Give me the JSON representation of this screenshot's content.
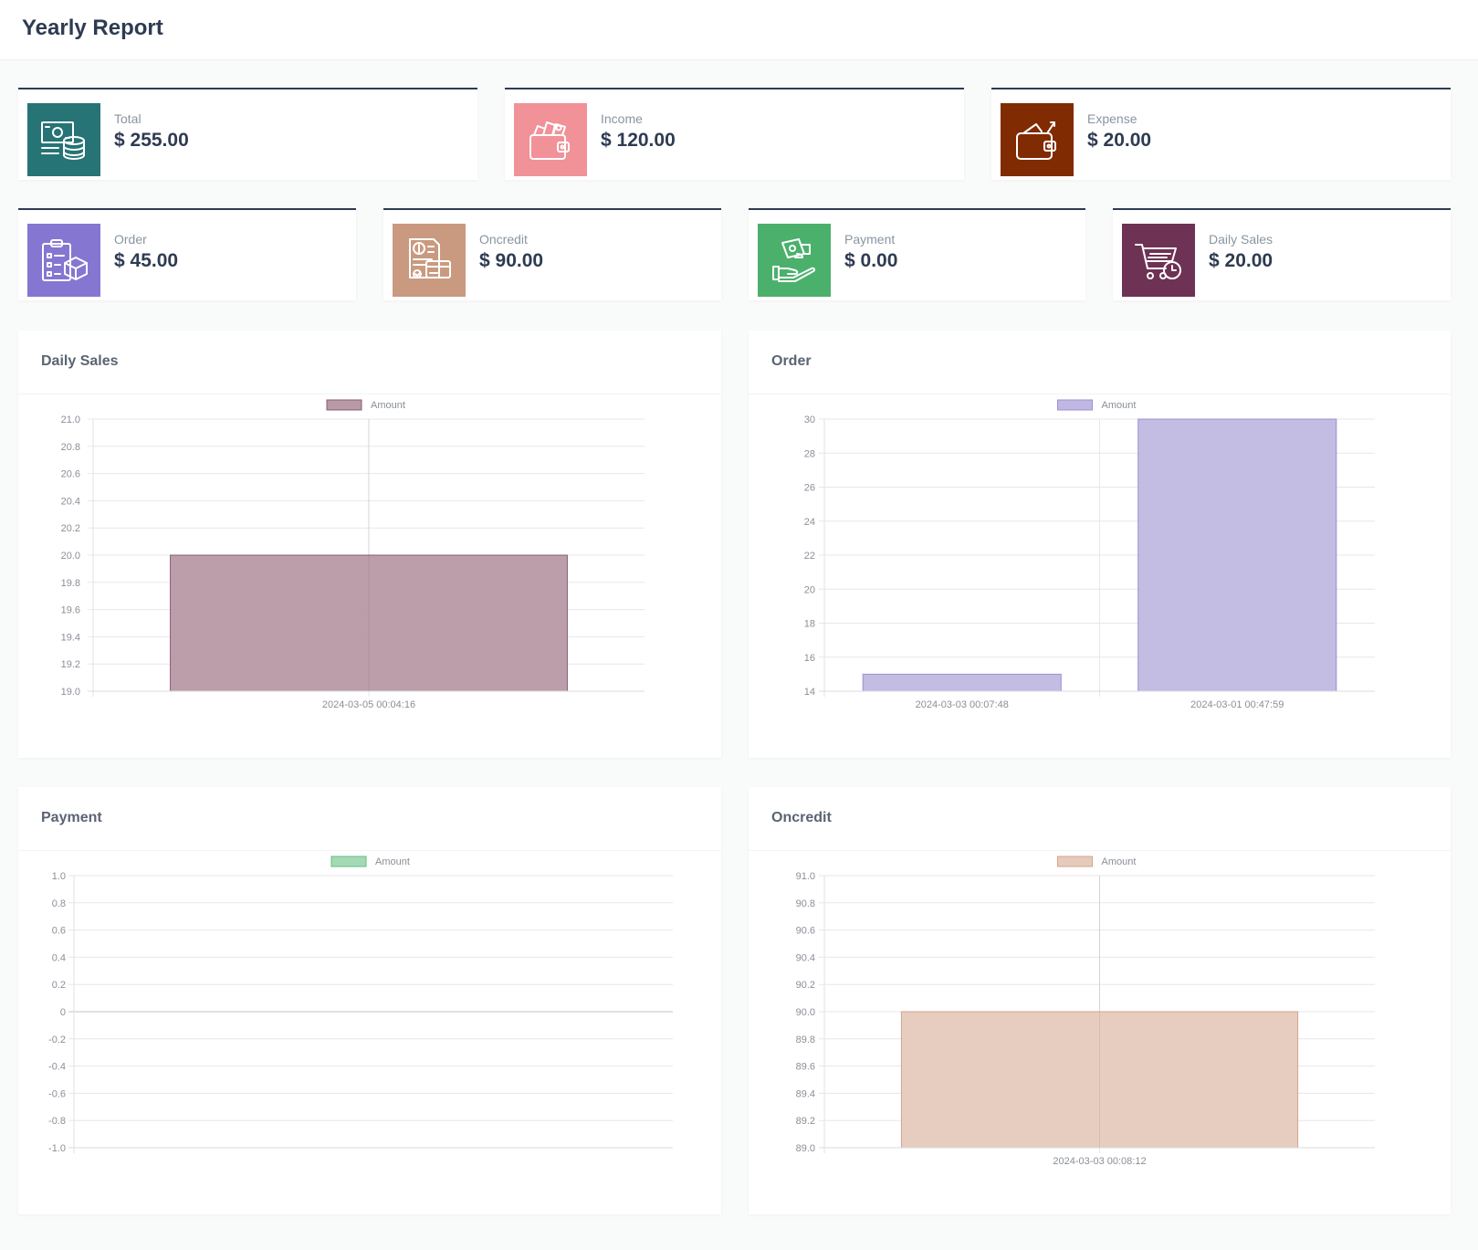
{
  "header": {
    "title": "Yearly Report"
  },
  "stats": [
    {
      "label": "Total",
      "value": "$ 255.00",
      "color": "#267475",
      "icon": "money-database-icon"
    },
    {
      "label": "Income",
      "value": "$ 120.00",
      "color": "#f19198",
      "icon": "wallet-income-icon"
    },
    {
      "label": "Expense",
      "value": "$ 20.00",
      "color": "#812b02",
      "icon": "wallet-expense-icon"
    },
    {
      "label": "Order",
      "value": "$ 45.00",
      "color": "#8576d2",
      "icon": "clipboard-box-icon"
    },
    {
      "label": "Oncredit",
      "value": "$ 90.00",
      "color": "#c99a80",
      "icon": "invoice-card-icon"
    },
    {
      "label": "Payment",
      "value": "$ 0.00",
      "color": "#4bb06c",
      "icon": "hand-money-icon"
    },
    {
      "label": "Daily Sales",
      "value": "$ 20.00",
      "color": "#6e3254",
      "icon": "cart-clock-icon"
    }
  ],
  "charts": [
    {
      "title": "Daily Sales",
      "chart_data": {
        "type": "bar",
        "legend": "Amount",
        "fill": "#b899a6",
        "stroke": "#8c5c72",
        "categories": [
          "2024-03-05 00:04:16"
        ],
        "values": [
          20
        ],
        "ylim": [
          19.0,
          21.0
        ],
        "yticks": [
          "21.0",
          "20.8",
          "20.6",
          "20.4",
          "20.2",
          "20.0",
          "19.8",
          "19.6",
          "19.4",
          "19.2",
          "19.0"
        ],
        "grid": true,
        "legend_position": "top-center"
      }
    },
    {
      "title": "Order",
      "chart_data": {
        "type": "bar",
        "legend": "Amount",
        "fill": "#c0b8e2",
        "stroke": "#9c90d4",
        "categories": [
          "2024-03-03 00:07:48",
          "2024-03-01 00:47:59"
        ],
        "values": [
          15,
          30
        ],
        "ylim": [
          14,
          30
        ],
        "yticks": [
          "30",
          "28",
          "26",
          "24",
          "22",
          "20",
          "18",
          "16",
          "14"
        ],
        "grid": true,
        "legend_position": "top-center"
      }
    },
    {
      "title": "Payment",
      "chart_data": {
        "type": "bar",
        "legend": "Amount",
        "fill": "#a4d9b5",
        "stroke": "#5fbf80",
        "categories": [],
        "values": [],
        "ylim": [
          -1.0,
          1.0
        ],
        "yticks": [
          "1.0",
          "0.8",
          "0.6",
          "0.4",
          "0.2",
          "0",
          "-0.2",
          "-0.4",
          "-0.6",
          "-0.8",
          "-1.0"
        ],
        "grid": true,
        "legend_position": "top-center"
      }
    },
    {
      "title": "Oncredit",
      "chart_data": {
        "type": "bar",
        "legend": "Amount",
        "fill": "#e6cabc",
        "stroke": "#d3a48d",
        "categories": [
          "2024-03-03 00:08:12"
        ],
        "values": [
          90
        ],
        "ylim": [
          89.0,
          91.0
        ],
        "yticks": [
          "91.0",
          "90.8",
          "90.6",
          "90.4",
          "90.2",
          "90.0",
          "89.8",
          "89.6",
          "89.4",
          "89.2",
          "89.0"
        ],
        "grid": true,
        "legend_position": "top-center"
      }
    }
  ]
}
